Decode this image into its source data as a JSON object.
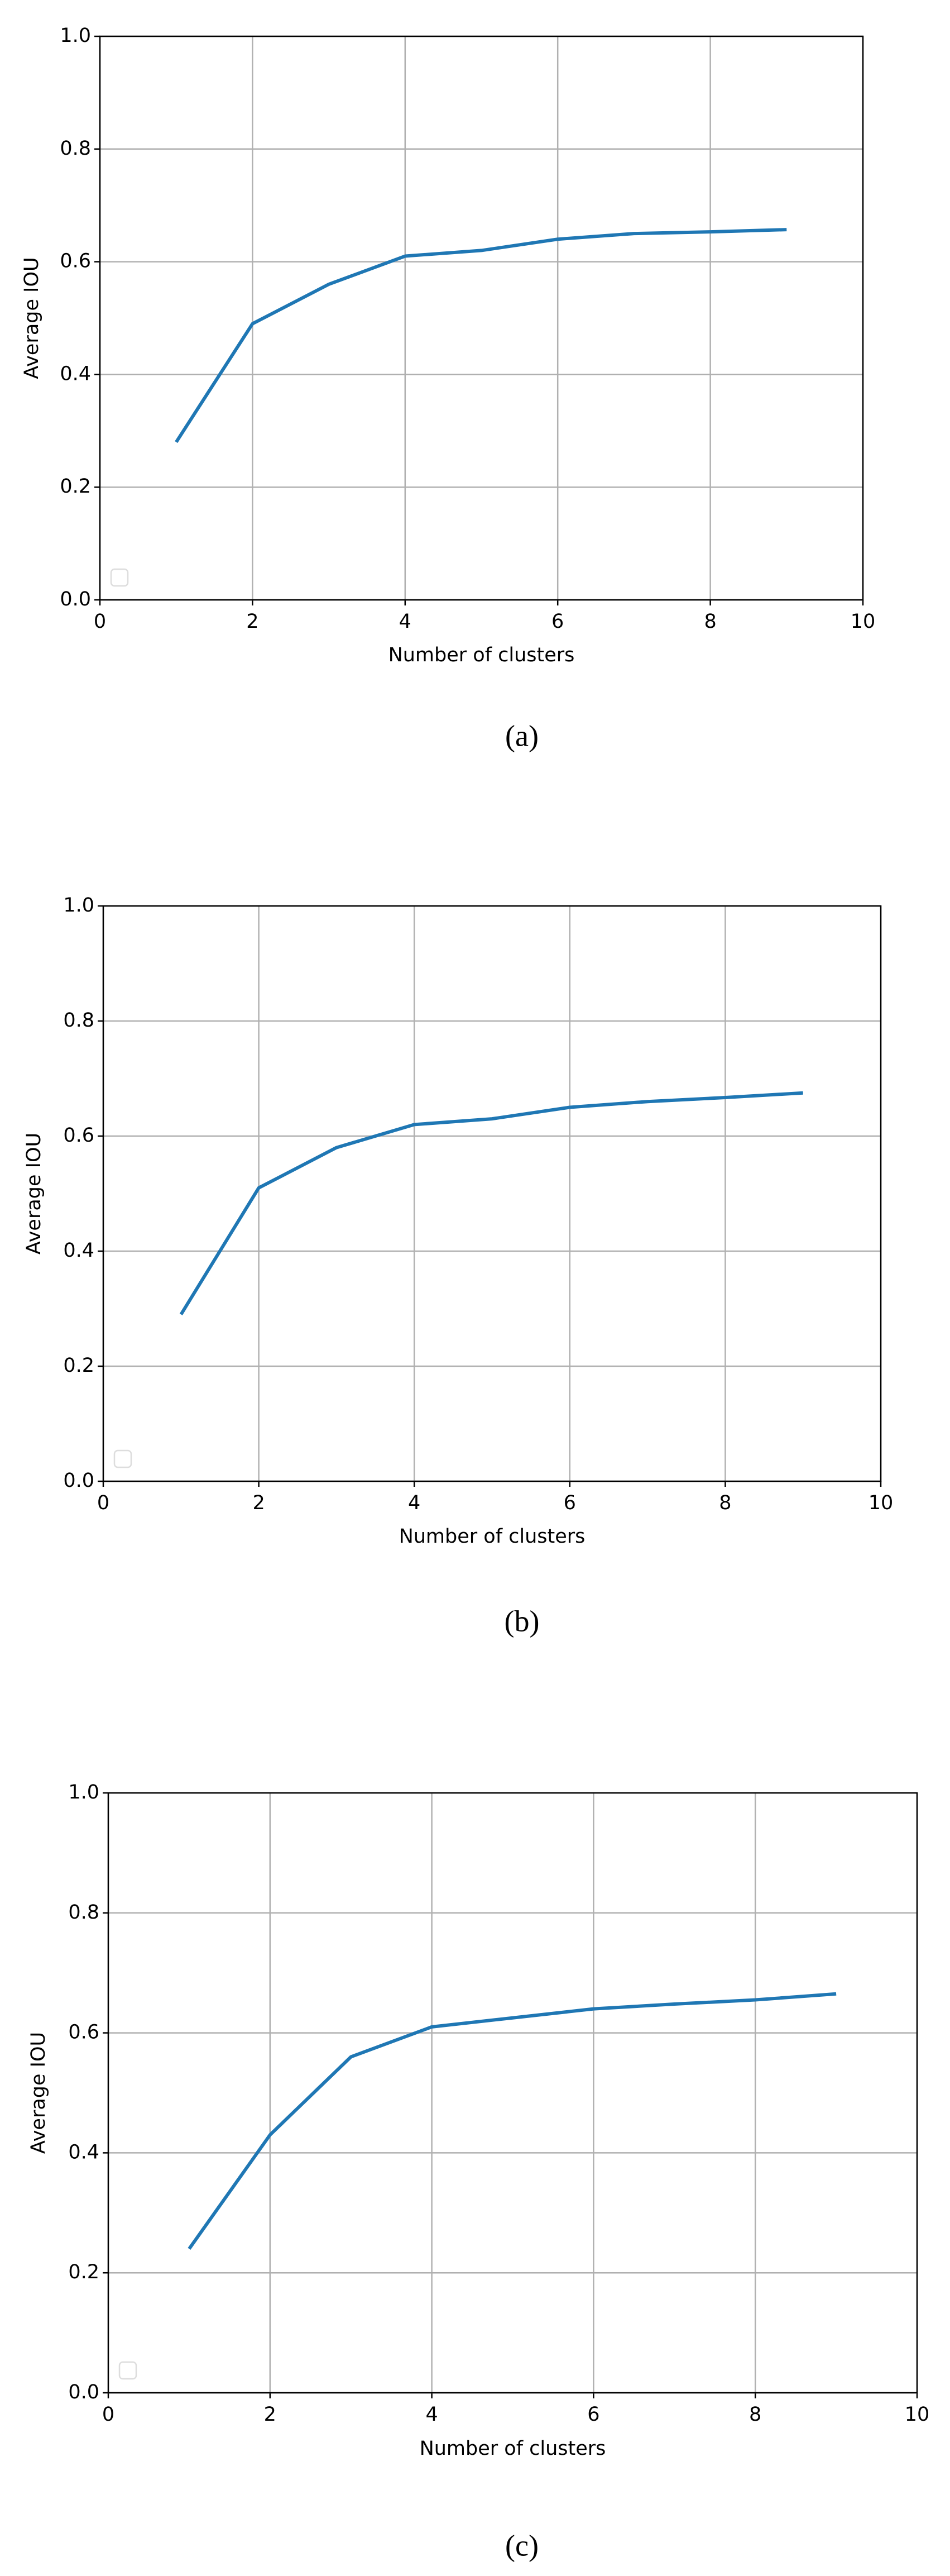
{
  "chart_data": [
    {
      "type": "line",
      "xlabel": "Number of clusters",
      "ylabel": "Average IOU",
      "caption": "(a)",
      "x": [
        1,
        2,
        3,
        4,
        5,
        6,
        7,
        8,
        9
      ],
      "series": [
        {
          "color": "#1f77b4",
          "values": [
            0.28,
            0.49,
            0.56,
            0.61,
            0.62,
            0.64,
            0.65,
            0.653,
            0.657
          ]
        }
      ],
      "xlim": [
        0,
        10
      ],
      "xticks": [
        0,
        2,
        4,
        6,
        8,
        10
      ],
      "ylim": [
        0,
        1
      ],
      "yticks": [
        {
          "value": 0,
          "label": "0.0"
        },
        0.2,
        0.4,
        0.6,
        0.8,
        {
          "value": 1,
          "label": "1.0"
        }
      ],
      "grid": true
    },
    {
      "type": "line",
      "xlabel": "Number of clusters",
      "ylabel": "Average IOU",
      "caption": "(b)",
      "x": [
        1,
        2,
        3,
        4,
        5,
        6,
        7,
        8,
        9
      ],
      "series": [
        {
          "color": "#1f77b4",
          "values": [
            0.29,
            0.51,
            0.58,
            0.62,
            0.63,
            0.65,
            0.66,
            0.667,
            0.675
          ]
        }
      ],
      "xlim": [
        0,
        10
      ],
      "xticks": [
        0,
        2,
        4,
        6,
        8,
        10
      ],
      "ylim": [
        0,
        1
      ],
      "yticks": [
        {
          "value": 0,
          "label": "0.0"
        },
        0.2,
        0.4,
        0.6,
        0.8,
        {
          "value": 1,
          "label": "1.0"
        }
      ],
      "grid": true
    },
    {
      "type": "line",
      "xlabel": "Number of clusters",
      "ylabel": "Average IOU",
      "caption": "(c)",
      "x": [
        1,
        2,
        3,
        4,
        5,
        6,
        7,
        8,
        9
      ],
      "series": [
        {
          "color": "#1f77b4",
          "values": [
            0.24,
            0.43,
            0.56,
            0.61,
            0.625,
            0.64,
            0.648,
            0.655,
            0.665
          ]
        }
      ],
      "xlim": [
        0,
        10
      ],
      "xticks": [
        0,
        2,
        4,
        6,
        8,
        10
      ],
      "ylim": [
        0,
        1
      ],
      "yticks": [
        {
          "value": 0,
          "label": "0.0"
        },
        0.2,
        0.4,
        0.6,
        0.8,
        {
          "value": 1,
          "label": "1.0"
        }
      ],
      "grid": true
    }
  ]
}
